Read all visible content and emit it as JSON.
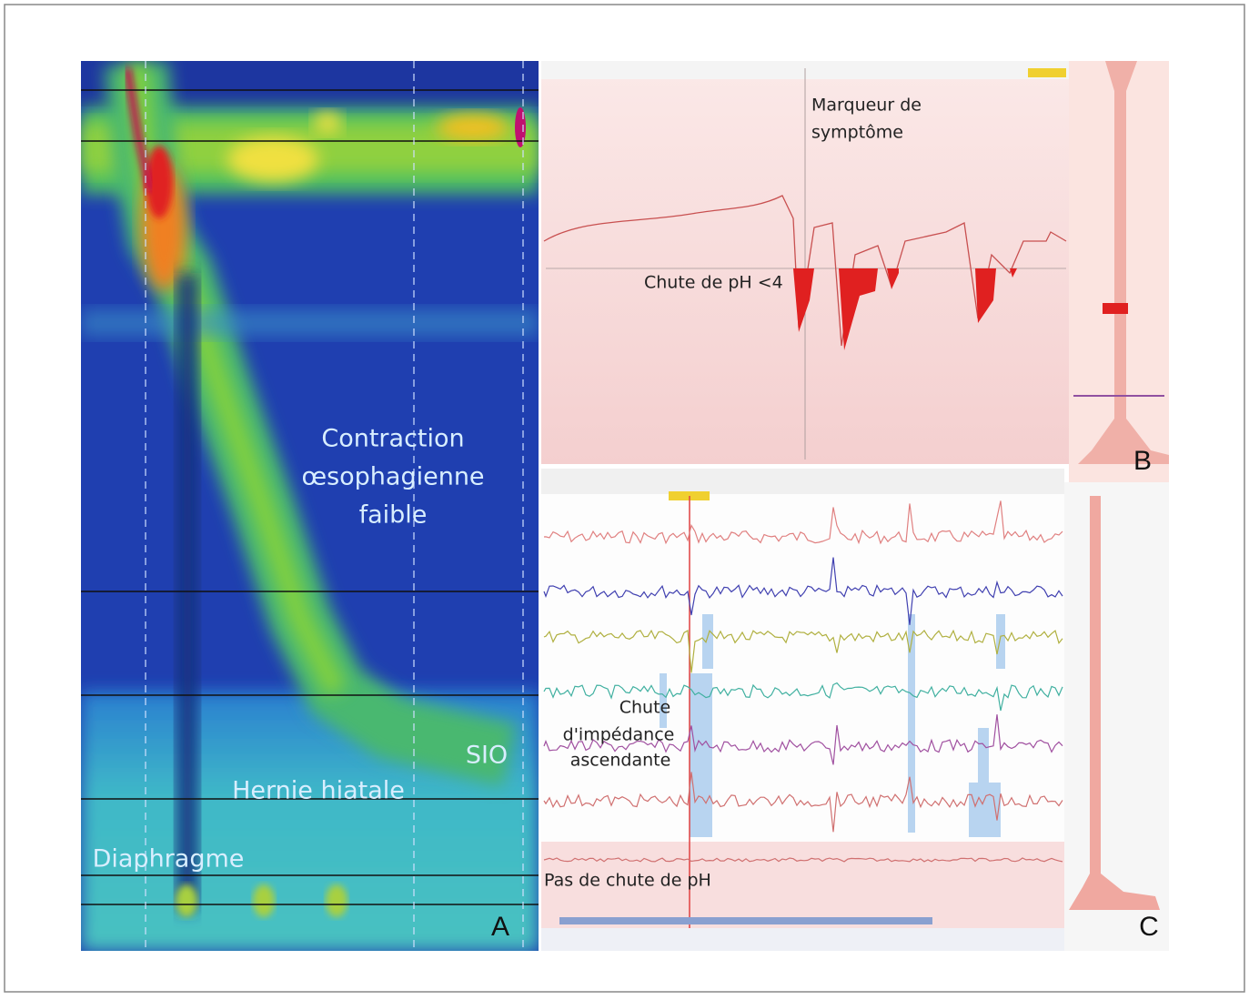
{
  "panels": {
    "a": {
      "contraction": [
        "Contraction",
        "œsophagienne",
        "faible"
      ],
      "sio": "SIO",
      "hernia": "Hernie hiatale",
      "diaphragm": "Diaphragme",
      "letter": "A"
    },
    "b": {
      "marker": [
        "Marqueur de",
        "symptôme"
      ],
      "ph_drop": "Chute de pH <4",
      "letter": "B"
    },
    "c": {
      "impedance": [
        "Chute",
        "d'impédance",
        "ascendante"
      ],
      "no_ph_drop": "Pas de chute de pH",
      "letter": "C"
    }
  }
}
